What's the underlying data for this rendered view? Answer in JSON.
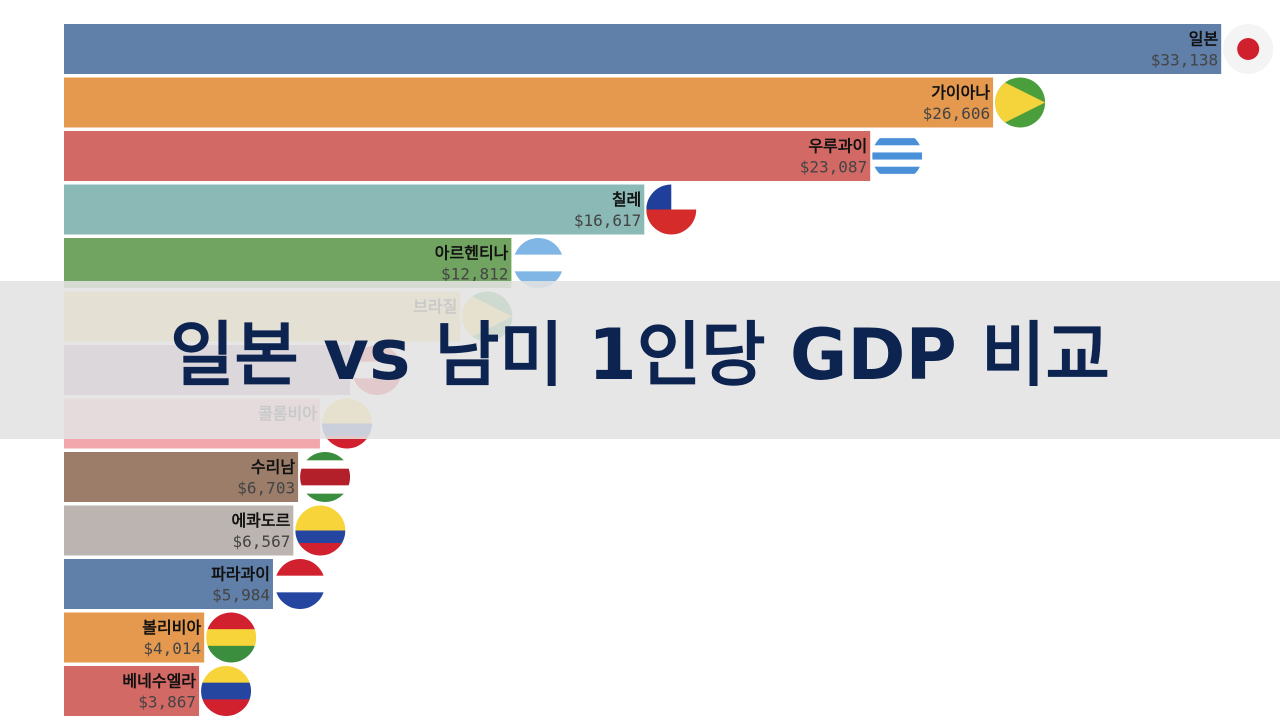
{
  "chart_data": {
    "type": "barh",
    "title": "일본 vs 남미 1인당 GDP 비교",
    "ranks": [
      1,
      2,
      3,
      4,
      5,
      6,
      7,
      8,
      9,
      10,
      11,
      12,
      13
    ],
    "categories": [
      "일본",
      "가이아나",
      "우루과이",
      "칠레",
      "아르헨티나",
      "브라질",
      null,
      "콜롬비아",
      "수리남",
      "에콰도르",
      "파라과이",
      "볼리비아",
      "베네수엘라"
    ],
    "values": [
      33138,
      26606,
      23087,
      16617,
      12812,
      11350,
      8190,
      7330,
      6703,
      6567,
      5984,
      4014,
      3867
    ],
    "value_labels": [
      "$33,138",
      "$26,606",
      "$23,087",
      "$16,617",
      "$12,812",
      null,
      null,
      null,
      "$6,703",
      "$6,567",
      "$5,984",
      "$4,014",
      "$3,867"
    ],
    "colors": [
      "#5778a4",
      "#e49444",
      "#d1615d",
      "#85b6b2",
      "#6a9f58",
      "#e7ca60",
      "#a87c9f",
      "#f1a2a9",
      "#967662",
      "#b8b0ac",
      "#5778a4",
      "#e49444",
      "#d1615d"
    ],
    "xlim": [
      -1833,
      34822
    ]
  }
}
